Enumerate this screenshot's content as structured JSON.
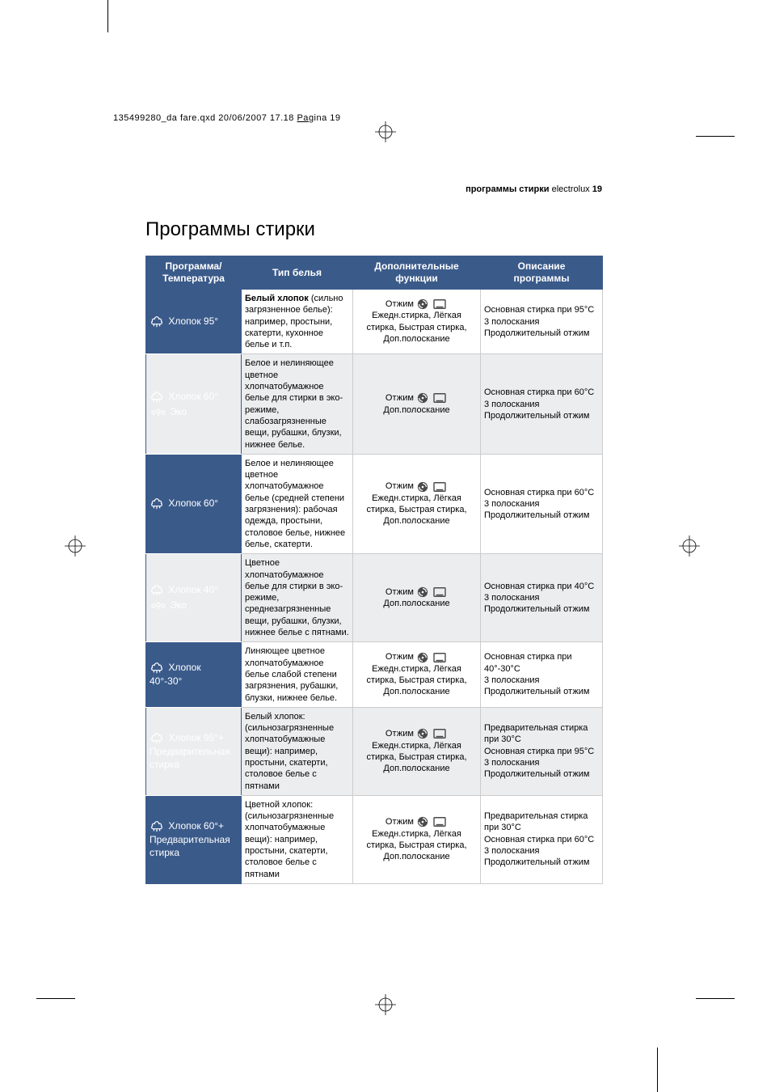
{
  "print_header": "135499280_da fare.qxd  20/06/2007  17.18  Pagina  19",
  "running_head": {
    "bold": "программы стирки",
    "rest": " electrolux ",
    "page": "19"
  },
  "title": "Программы стирки",
  "headers": {
    "c1a": "Программа/",
    "c1b": "Температура",
    "c2": "Тип белья",
    "c3a": "Дополнительные",
    "c3b": "функции",
    "c4a": "Описание",
    "c4b": "программы"
  },
  "labels": {
    "spin": "Отжим",
    "eco": "Эко"
  },
  "col_widths": [
    "118px",
    "138px",
    "158px",
    "151px"
  ],
  "rows": [
    {
      "prog_lines": [
        "Хлопок 95°"
      ],
      "eco": false,
      "type": "<b>Белый хлопок</b> (сильно загрязненное белье): например, простыни, скатерти, кухонное белье и т.п.",
      "opts_lines": [
        "Ежедн.стирка, Лёгкая стирка, Быстрая стирка, Доп.полоскание"
      ],
      "desc": "Основная стирка при 95°C<br>3 полоскания<br>Продолжительный отжим",
      "alt": false
    },
    {
      "prog_lines": [
        "Хлопок 60°"
      ],
      "eco": true,
      "type": "Белое и нелиняющее цветное хлопчатобумажное белье для стирки в эко-режиме, слабозагрязненные вещи, рубашки, блузки, нижнее белье.",
      "opts_lines": [
        "Доп.полоскание"
      ],
      "desc": "Основная стирка при 60°C<br>3 полоскания<br>Продолжительный отжим",
      "alt": true
    },
    {
      "prog_lines": [
        "Хлопок 60°"
      ],
      "eco": false,
      "type": "Белое и нелиняющее цветное хлопчатобумажное белье (средней степени загрязнения): рабочая одежда, простыни, столовое белье, нижнее белье, скатерти.",
      "opts_lines": [
        "Ежедн.стирка, Лёгкая стирка, Быстрая стирка, Доп.полоскание"
      ],
      "desc": "Основная стирка при 60°C<br>3 полоскания<br>Продолжительный отжим",
      "alt": false
    },
    {
      "prog_lines": [
        "Хлопок 40°"
      ],
      "eco": true,
      "type": "Цветное хлопчатобумажное белье для стирки в эко-режиме, среднезагрязненные вещи, рубашки, блузки, нижнее белье с пятнами.",
      "opts_lines": [
        "Доп.полоскание"
      ],
      "desc": "Основная стирка при 40°C<br>3 полоскания<br>Продолжительный отжим",
      "alt": true
    },
    {
      "prog_lines": [
        "Хлопок",
        "40°-30°"
      ],
      "eco": false,
      "type": "Линяющее цветное хлопчатобумажное белье слабой степени загрязнения, рубашки, блузки, нижнее белье.",
      "opts_lines": [
        "Ежедн.стирка, Лёгкая стирка, Быстрая стирка, Доп.полоскание"
      ],
      "desc": "Основная стирка при 40°-30°C<br>3 полоскания<br>Продолжительный отжим",
      "alt": false
    },
    {
      "prog_lines": [
        "Хлопок 95°+",
        "Предварительная",
        "стирка"
      ],
      "eco": false,
      "type": "Белый хлопок: (сильнозагрязненные хлопчатобумажные вещи): например, простыни, скатерти, столовое белье с пятнами",
      "opts_lines": [
        "Ежедн.стирка, Лёгкая стирка, Быстрая стирка, Доп.полоскание"
      ],
      "desc": "Предварительная стирка при 30°C<br>Основная стирка при 95°C<br>3 полоскания<br>Продолжительный отжим",
      "alt": true
    },
    {
      "prog_lines": [
        "Хлопок 60°+",
        "Предварительная",
        "стирка"
      ],
      "eco": false,
      "type": "Цветной хлопок: (сильнозагрязненные хлопчатобумажные вещи): например, простыни, скатерти, столовое белье с пятнами",
      "opts_lines": [
        "Ежедн.стирка, Лёгкая стирка, Быстрая стирка, Доп.полоскание"
      ],
      "desc": "Предварительная стирка при 30°C<br>Основная стирка при 60°C<br>3 полоскания<br>Продолжительный отжим",
      "alt": false
    }
  ]
}
